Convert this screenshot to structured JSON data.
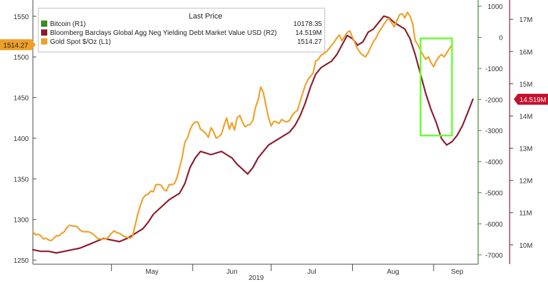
{
  "chart_data": {
    "type": "line",
    "title": "",
    "xlabel": "2019",
    "x_tick_labels": [
      "May",
      "Jun",
      "Jul",
      "Aug",
      "Sep"
    ],
    "x_domain_days": [
      0,
      170
    ],
    "month_tick_days": [
      30,
      61,
      91,
      122,
      153
    ],
    "month_label_days": [
      15,
      45.5,
      76,
      106.5,
      137.5,
      162
    ],
    "axes": {
      "left": {
        "ylim": [
          1245,
          1570
        ],
        "ticks": [
          1250,
          1300,
          1350,
          1400,
          1450,
          1500,
          1550
        ]
      },
      "green": {
        "ylim": [
          -7300,
          1200
        ],
        "ticks": [
          1000,
          0,
          -1000,
          -2000,
          -3000,
          -4000,
          -5000,
          -6000,
          -7000
        ]
      },
      "red": {
        "ylim": [
          9.4,
          17.6
        ],
        "ticks": [
          10,
          11,
          12,
          13,
          14,
          15,
          16,
          17
        ],
        "tick_labels": [
          "10M",
          "11M",
          "12M",
          "13M",
          "14M",
          "15M",
          "16M",
          "17M"
        ]
      }
    },
    "legend": {
      "title": "Last Price",
      "placement": "top-left",
      "entries": [
        {
          "name": "Bitcoin  (R1)",
          "value": "10178.35",
          "color": "#3a8a1f"
        },
        {
          "name": "Bloomberg Barclays Global Agg Neg Yielding Debt Market Value USD  (R2)",
          "value": "14.519M",
          "color": "#8b1a2b"
        },
        {
          "name": "Gold Spot $/Oz  (L1)",
          "value": "1514.27",
          "color": "#f0a028"
        }
      ]
    },
    "badges": {
      "gold": "1514.27",
      "neg_yield": "14.519M"
    },
    "highlight": {
      "x_range_days": [
        148,
        160
      ],
      "color": "#66ff33"
    },
    "series": [
      {
        "name": "Gold Spot $/Oz",
        "axis": "left",
        "color": "#f0a028",
        "points": [
          [
            0,
            1285
          ],
          [
            1,
            1281
          ],
          [
            2,
            1282
          ],
          [
            3,
            1280
          ],
          [
            4,
            1276
          ],
          [
            5,
            1277
          ],
          [
            6,
            1275
          ],
          [
            7,
            1274
          ],
          [
            8,
            1277
          ],
          [
            9,
            1280
          ],
          [
            10,
            1280
          ],
          [
            11,
            1283
          ],
          [
            12,
            1285
          ],
          [
            13,
            1290
          ],
          [
            14,
            1293
          ],
          [
            15,
            1292
          ],
          [
            16,
            1292
          ],
          [
            17,
            1291
          ],
          [
            18,
            1287
          ],
          [
            19,
            1285
          ],
          [
            20,
            1285
          ],
          [
            21,
            1285
          ],
          [
            22,
            1284
          ],
          [
            23,
            1282
          ],
          [
            24,
            1279
          ],
          [
            25,
            1276
          ],
          [
            26,
            1276
          ],
          [
            27,
            1276
          ],
          [
            28,
            1276
          ],
          [
            29,
            1279
          ],
          [
            30,
            1283
          ],
          [
            31,
            1286
          ],
          [
            32,
            1284
          ],
          [
            33,
            1283
          ],
          [
            34,
            1281
          ],
          [
            35,
            1279
          ],
          [
            36,
            1278
          ],
          [
            37,
            1277
          ],
          [
            38,
            1279
          ],
          [
            39,
            1292
          ],
          [
            40,
            1306
          ],
          [
            41,
            1317
          ],
          [
            42,
            1326
          ],
          [
            43,
            1330
          ],
          [
            44,
            1331
          ],
          [
            45,
            1335
          ],
          [
            46,
            1334
          ],
          [
            47,
            1343
          ],
          [
            48,
            1343
          ],
          [
            49,
            1342
          ],
          [
            50,
            1337
          ],
          [
            51,
            1335
          ],
          [
            52,
            1343
          ],
          [
            53,
            1343
          ],
          [
            54,
            1344
          ],
          [
            55,
            1351
          ],
          [
            56,
            1364
          ],
          [
            57,
            1376
          ],
          [
            58,
            1395
          ],
          [
            59,
            1400
          ],
          [
            60,
            1410
          ],
          [
            61,
            1417
          ],
          [
            62,
            1420
          ],
          [
            63,
            1420
          ],
          [
            64,
            1411
          ],
          [
            65,
            1409
          ],
          [
            66,
            1406
          ],
          [
            67,
            1401
          ],
          [
            68,
            1413
          ],
          [
            69,
            1408
          ],
          [
            70,
            1400
          ],
          [
            71,
            1402
          ],
          [
            72,
            1405
          ],
          [
            73,
            1416
          ],
          [
            74,
            1425
          ],
          [
            75,
            1411
          ],
          [
            76,
            1419
          ],
          [
            77,
            1410
          ],
          [
            78,
            1425
          ],
          [
            79,
            1428
          ],
          [
            80,
            1420
          ],
          [
            81,
            1414
          ],
          [
            82,
            1416
          ],
          [
            83,
            1417
          ],
          [
            84,
            1422
          ],
          [
            85,
            1438
          ],
          [
            86,
            1447
          ],
          [
            87,
            1463
          ],
          [
            88,
            1456
          ],
          [
            89,
            1440
          ],
          [
            90,
            1425
          ],
          [
            91,
            1415
          ],
          [
            92,
            1421
          ],
          [
            93,
            1420
          ],
          [
            94,
            1418
          ],
          [
            95,
            1423
          ],
          [
            96,
            1421
          ],
          [
            97,
            1420
          ],
          [
            98,
            1422
          ],
          [
            99,
            1428
          ],
          [
            100,
            1432
          ],
          [
            101,
            1434
          ],
          [
            102,
            1445
          ],
          [
            103,
            1455
          ],
          [
            104,
            1465
          ],
          [
            105,
            1472
          ],
          [
            106,
            1476
          ],
          [
            107,
            1480
          ],
          [
            108,
            1495
          ],
          [
            109,
            1497
          ],
          [
            110,
            1502
          ],
          [
            111,
            1504
          ],
          [
            112,
            1506
          ],
          [
            113,
            1510
          ],
          [
            114,
            1514
          ],
          [
            115,
            1518
          ],
          [
            116,
            1523
          ],
          [
            117,
            1527
          ],
          [
            118,
            1520
          ],
          [
            119,
            1525
          ],
          [
            120,
            1530
          ],
          [
            121,
            1532
          ],
          [
            122,
            1524
          ],
          [
            123,
            1517
          ],
          [
            124,
            1510
          ],
          [
            125,
            1505
          ],
          [
            126,
            1502
          ],
          [
            127,
            1500
          ],
          [
            128,
            1505
          ],
          [
            129,
            1512
          ],
          [
            130,
            1519
          ],
          [
            131,
            1523
          ],
          [
            132,
            1530
          ],
          [
            133,
            1535
          ],
          [
            134,
            1540
          ],
          [
            135,
            1545
          ],
          [
            136,
            1547
          ],
          [
            137,
            1542
          ],
          [
            138,
            1537
          ],
          [
            139,
            1545
          ],
          [
            140,
            1552
          ],
          [
            141,
            1553
          ],
          [
            142,
            1548
          ],
          [
            143,
            1555
          ],
          [
            144,
            1550
          ],
          [
            145,
            1541
          ],
          [
            146,
            1520
          ],
          [
            147,
            1515
          ],
          [
            148,
            1508
          ],
          [
            149,
            1502
          ],
          [
            150,
            1497
          ],
          [
            151,
            1500
          ],
          [
            152,
            1493
          ],
          [
            153,
            1488
          ],
          [
            154,
            1495
          ],
          [
            155,
            1500
          ],
          [
            156,
            1503
          ],
          [
            157,
            1500
          ],
          [
            158,
            1505
          ],
          [
            159,
            1510
          ],
          [
            160,
            1515
          ]
        ]
      },
      {
        "name": "Bloomberg Barclays Global Agg Neg Yielding Debt Market Value USD",
        "axis": "red",
        "color": "#8b1a2b",
        "points": [
          [
            0,
            9.85
          ],
          [
            3,
            9.8
          ],
          [
            6,
            9.8
          ],
          [
            9,
            9.75
          ],
          [
            12,
            9.8
          ],
          [
            15,
            9.85
          ],
          [
            18,
            9.9
          ],
          [
            21,
            10.0
          ],
          [
            24,
            10.1
          ],
          [
            27,
            10.2
          ],
          [
            30,
            10.15
          ],
          [
            33,
            10.1
          ],
          [
            36,
            10.2
          ],
          [
            39,
            10.35
          ],
          [
            42,
            10.5
          ],
          [
            44,
            10.7
          ],
          [
            46,
            10.95
          ],
          [
            48,
            11.1
          ],
          [
            50,
            11.25
          ],
          [
            52,
            11.4
          ],
          [
            54,
            11.5
          ],
          [
            56,
            11.6
          ],
          [
            58,
            11.9
          ],
          [
            60,
            12.4
          ],
          [
            62,
            12.7
          ],
          [
            64,
            12.9
          ],
          [
            66,
            12.85
          ],
          [
            68,
            12.8
          ],
          [
            70,
            12.85
          ],
          [
            72,
            12.9
          ],
          [
            74,
            12.8
          ],
          [
            76,
            12.7
          ],
          [
            78,
            12.5
          ],
          [
            80,
            12.35
          ],
          [
            82,
            12.2
          ],
          [
            84,
            12.4
          ],
          [
            86,
            12.7
          ],
          [
            88,
            12.9
          ],
          [
            90,
            13.1
          ],
          [
            92,
            13.2
          ],
          [
            94,
            13.3
          ],
          [
            96,
            13.4
          ],
          [
            98,
            13.5
          ],
          [
            100,
            13.7
          ],
          [
            102,
            14.0
          ],
          [
            104,
            14.4
          ],
          [
            106,
            14.9
          ],
          [
            108,
            15.3
          ],
          [
            110,
            15.5
          ],
          [
            112,
            15.6
          ],
          [
            114,
            15.7
          ],
          [
            116,
            15.9
          ],
          [
            118,
            16.2
          ],
          [
            120,
            16.5
          ],
          [
            122,
            16.4
          ],
          [
            124,
            16.2
          ],
          [
            126,
            16.3
          ],
          [
            128,
            16.6
          ],
          [
            130,
            16.7
          ],
          [
            132,
            16.9
          ],
          [
            134,
            17.1
          ],
          [
            136,
            17.05
          ],
          [
            138,
            16.9
          ],
          [
            140,
            16.8
          ],
          [
            142,
            16.7
          ],
          [
            144,
            16.4
          ],
          [
            146,
            15.9
          ],
          [
            148,
            15.3
          ],
          [
            150,
            14.7
          ],
          [
            152,
            14.2
          ],
          [
            154,
            13.8
          ],
          [
            156,
            13.3
          ],
          [
            158,
            13.1
          ],
          [
            160,
            13.2
          ],
          [
            162,
            13.4
          ],
          [
            164,
            13.7
          ],
          [
            166,
            14.1
          ],
          [
            168,
            14.52
          ]
        ]
      }
    ]
  }
}
